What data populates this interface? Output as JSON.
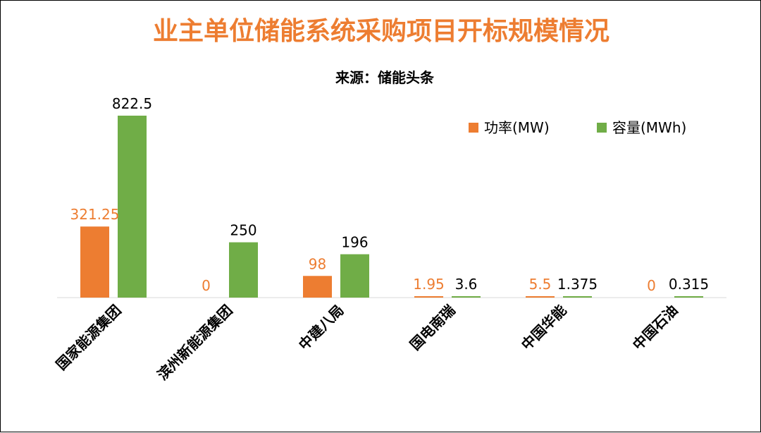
{
  "colors": {
    "title": "#ED7D31",
    "power": "#ED7D31",
    "capacity": "#70AD47",
    "axis": "#D9D9D9",
    "text": "#000000"
  },
  "chart_data": {
    "type": "bar",
    "title": "业主单位储能系统采购项目开标规模情况",
    "subtitle": "来源：储能头条",
    "xlabel": "",
    "ylabel": "",
    "ylim": [
      0,
      850
    ],
    "grid": false,
    "legend_position": "top-right",
    "categories": [
      "国家能源集团",
      "滨州新能源集团",
      "中建八局",
      "国电南瑞",
      "中国华能",
      "中国石油"
    ],
    "series": [
      {
        "name": "功率(MW)",
        "values": [
          321.25,
          0,
          98,
          1.95,
          5.5,
          0
        ],
        "labels": [
          "321.25",
          "0",
          "98",
          "1.95",
          "5.5",
          "0"
        ]
      },
      {
        "name": "容量(MWh)",
        "values": [
          822.5,
          250,
          196,
          3.6,
          1.375,
          0.315
        ],
        "labels": [
          "822.5",
          "250",
          "196",
          "3.6",
          "1.375",
          "0.315"
        ]
      }
    ]
  }
}
